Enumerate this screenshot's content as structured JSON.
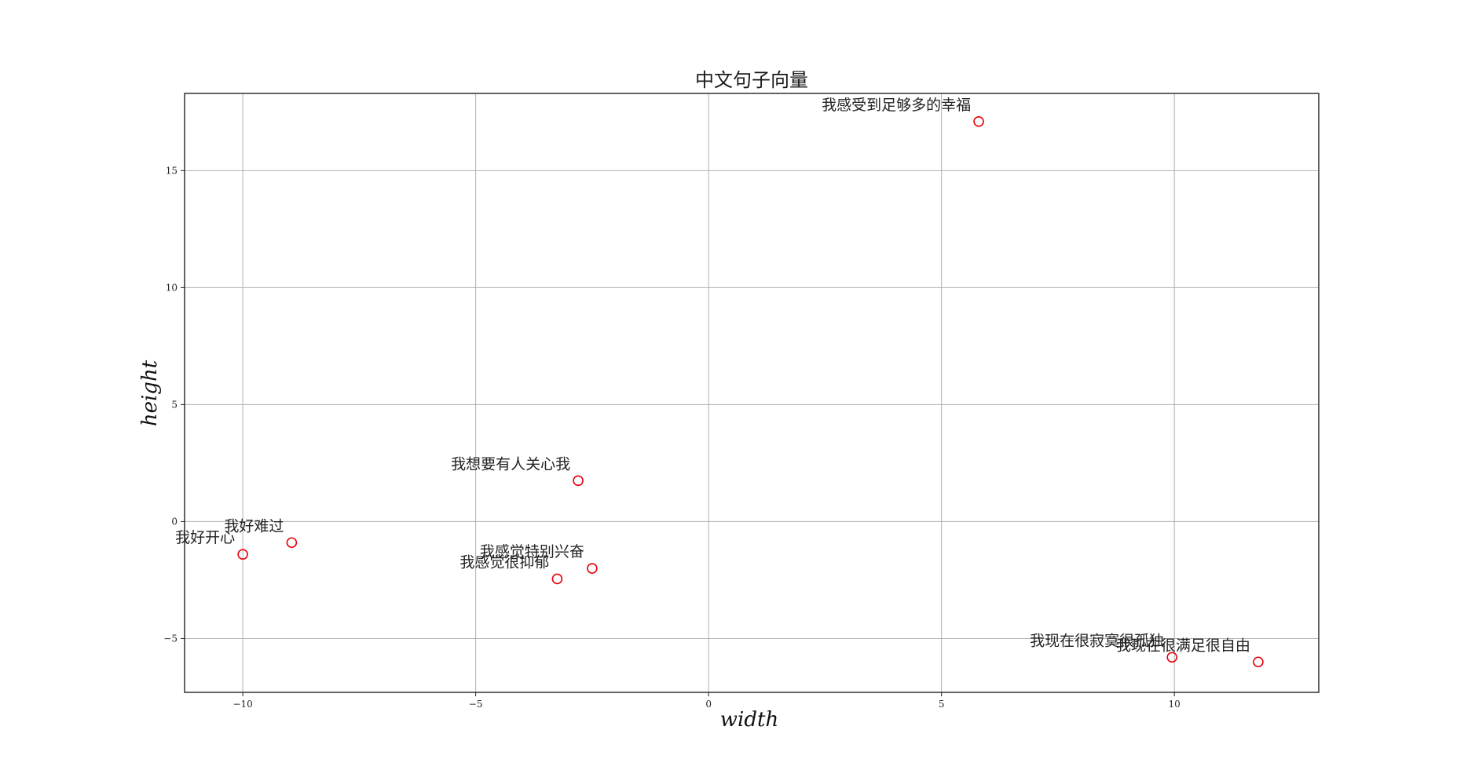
{
  "chart_data": {
    "type": "scatter",
    "title": "中文句子向量",
    "xlabel": "width",
    "ylabel": "height",
    "xlim": [
      -11.25,
      13.1
    ],
    "ylim": [
      -7.3,
      18.3
    ],
    "xticks": [
      -10,
      -5,
      0,
      5,
      10
    ],
    "yticks": [
      -5,
      0,
      5,
      10,
      15
    ],
    "grid": true,
    "marker_color": "#e8000b",
    "points": [
      {
        "label": "我感受到足够多的幸福",
        "x": 5.8,
        "y": 17.1
      },
      {
        "label": "我想要有人关心我",
        "x": -2.8,
        "y": 1.75
      },
      {
        "label": "我好难过",
        "x": -8.95,
        "y": -0.9
      },
      {
        "label": "我好开心",
        "x": -10.0,
        "y": -1.4
      },
      {
        "label": "我感觉特别兴奋",
        "x": -2.5,
        "y": -2.0
      },
      {
        "label": "我感觉很抑郁",
        "x": -3.25,
        "y": -2.45
      },
      {
        "label": "我现在很寂寞很孤独",
        "x": 9.95,
        "y": -5.8
      },
      {
        "label": "我现在很满足很自由",
        "x": 11.8,
        "y": -6.0
      }
    ]
  }
}
